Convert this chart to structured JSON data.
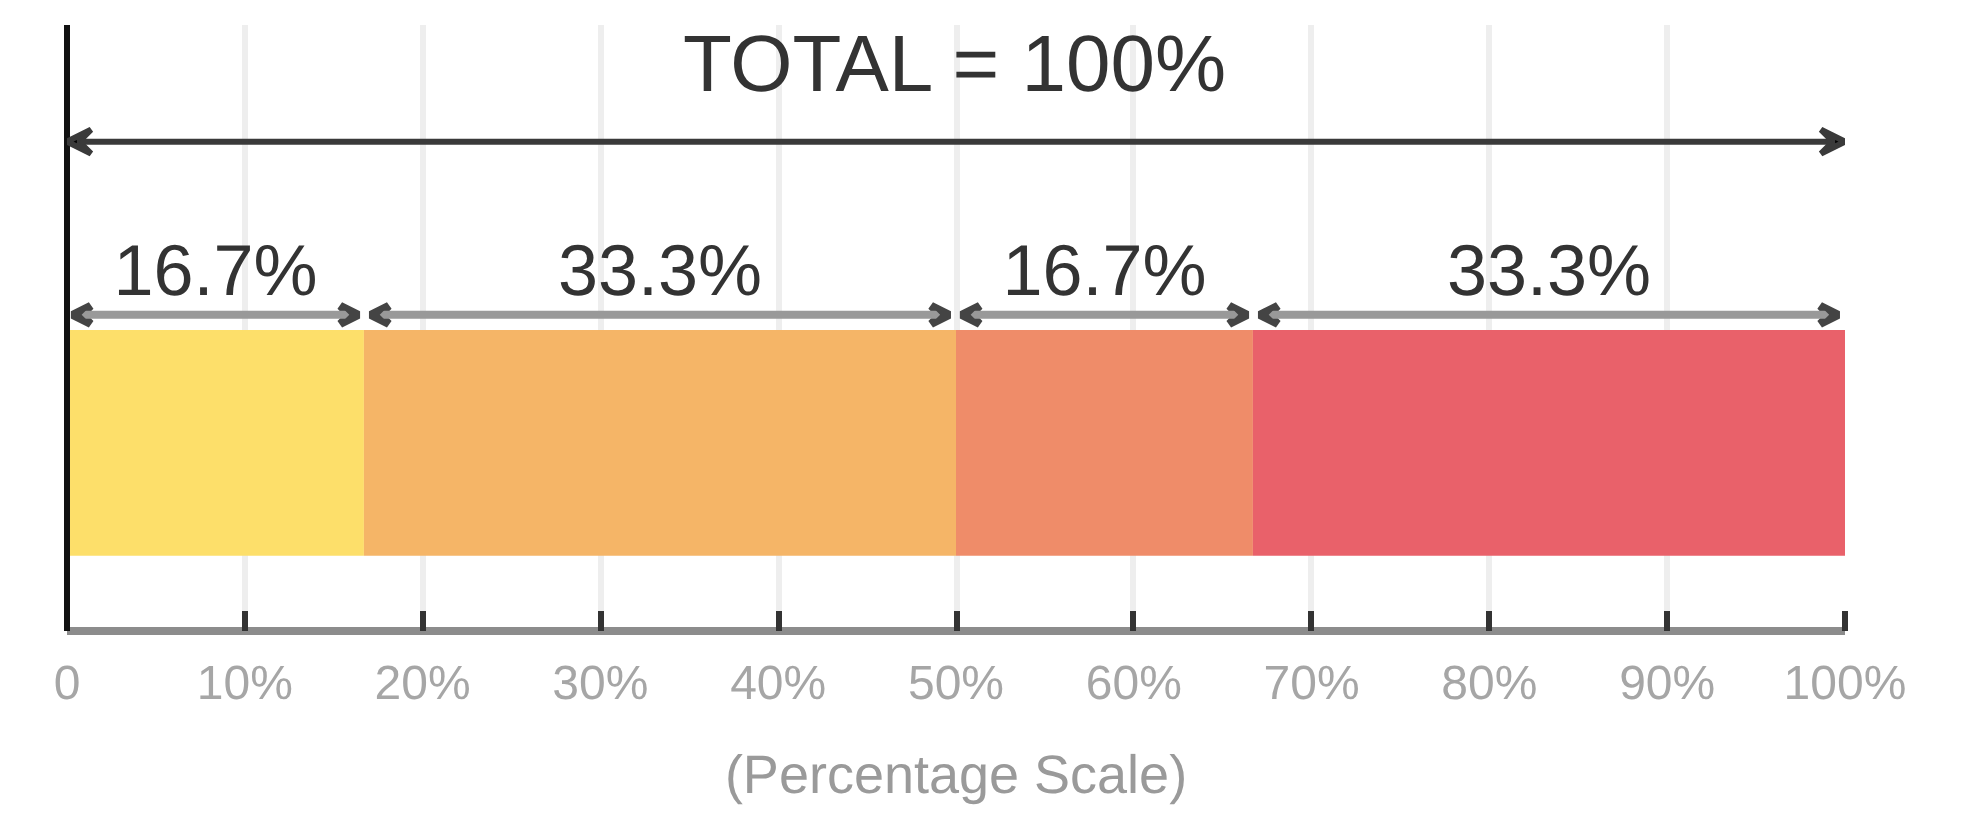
{
  "chart_data": {
    "type": "bar",
    "orientation": "horizontal",
    "stacked": true,
    "categories": [
      null
    ],
    "series": [
      {
        "color": "#fddf6a",
        "values": [
          16.7
        ],
        "value_labels": [
          "16.7%"
        ]
      },
      {
        "color": "#f5b567",
        "values": [
          33.3
        ],
        "value_labels": [
          "33.3%"
        ]
      },
      {
        "color": "#ef8c69",
        "values": [
          16.7
        ],
        "value_labels": [
          "16.7%"
        ]
      },
      {
        "color": "#e9616a",
        "values": [
          33.3
        ],
        "value_labels": [
          "33.3%"
        ]
      }
    ],
    "annotations": [
      "TOTAL = 100%"
    ],
    "xlabel": "(Percentage Scale)",
    "xlim": [
      0,
      100
    ],
    "xticks": [
      {
        "value": 0,
        "label": "0"
      },
      {
        "value": 10,
        "label": "10%"
      },
      {
        "value": 20,
        "label": "20%"
      },
      {
        "value": 30,
        "label": "30%"
      },
      {
        "value": 40,
        "label": "40%"
      },
      {
        "value": 50,
        "label": "50%"
      },
      {
        "value": 60,
        "label": "60%"
      },
      {
        "value": 70,
        "label": "70%"
      },
      {
        "value": 80,
        "label": "80%"
      },
      {
        "value": 90,
        "label": "90%"
      },
      {
        "value": 100,
        "label": "100%"
      }
    ],
    "grid": "x",
    "tick_labels": "x"
  }
}
